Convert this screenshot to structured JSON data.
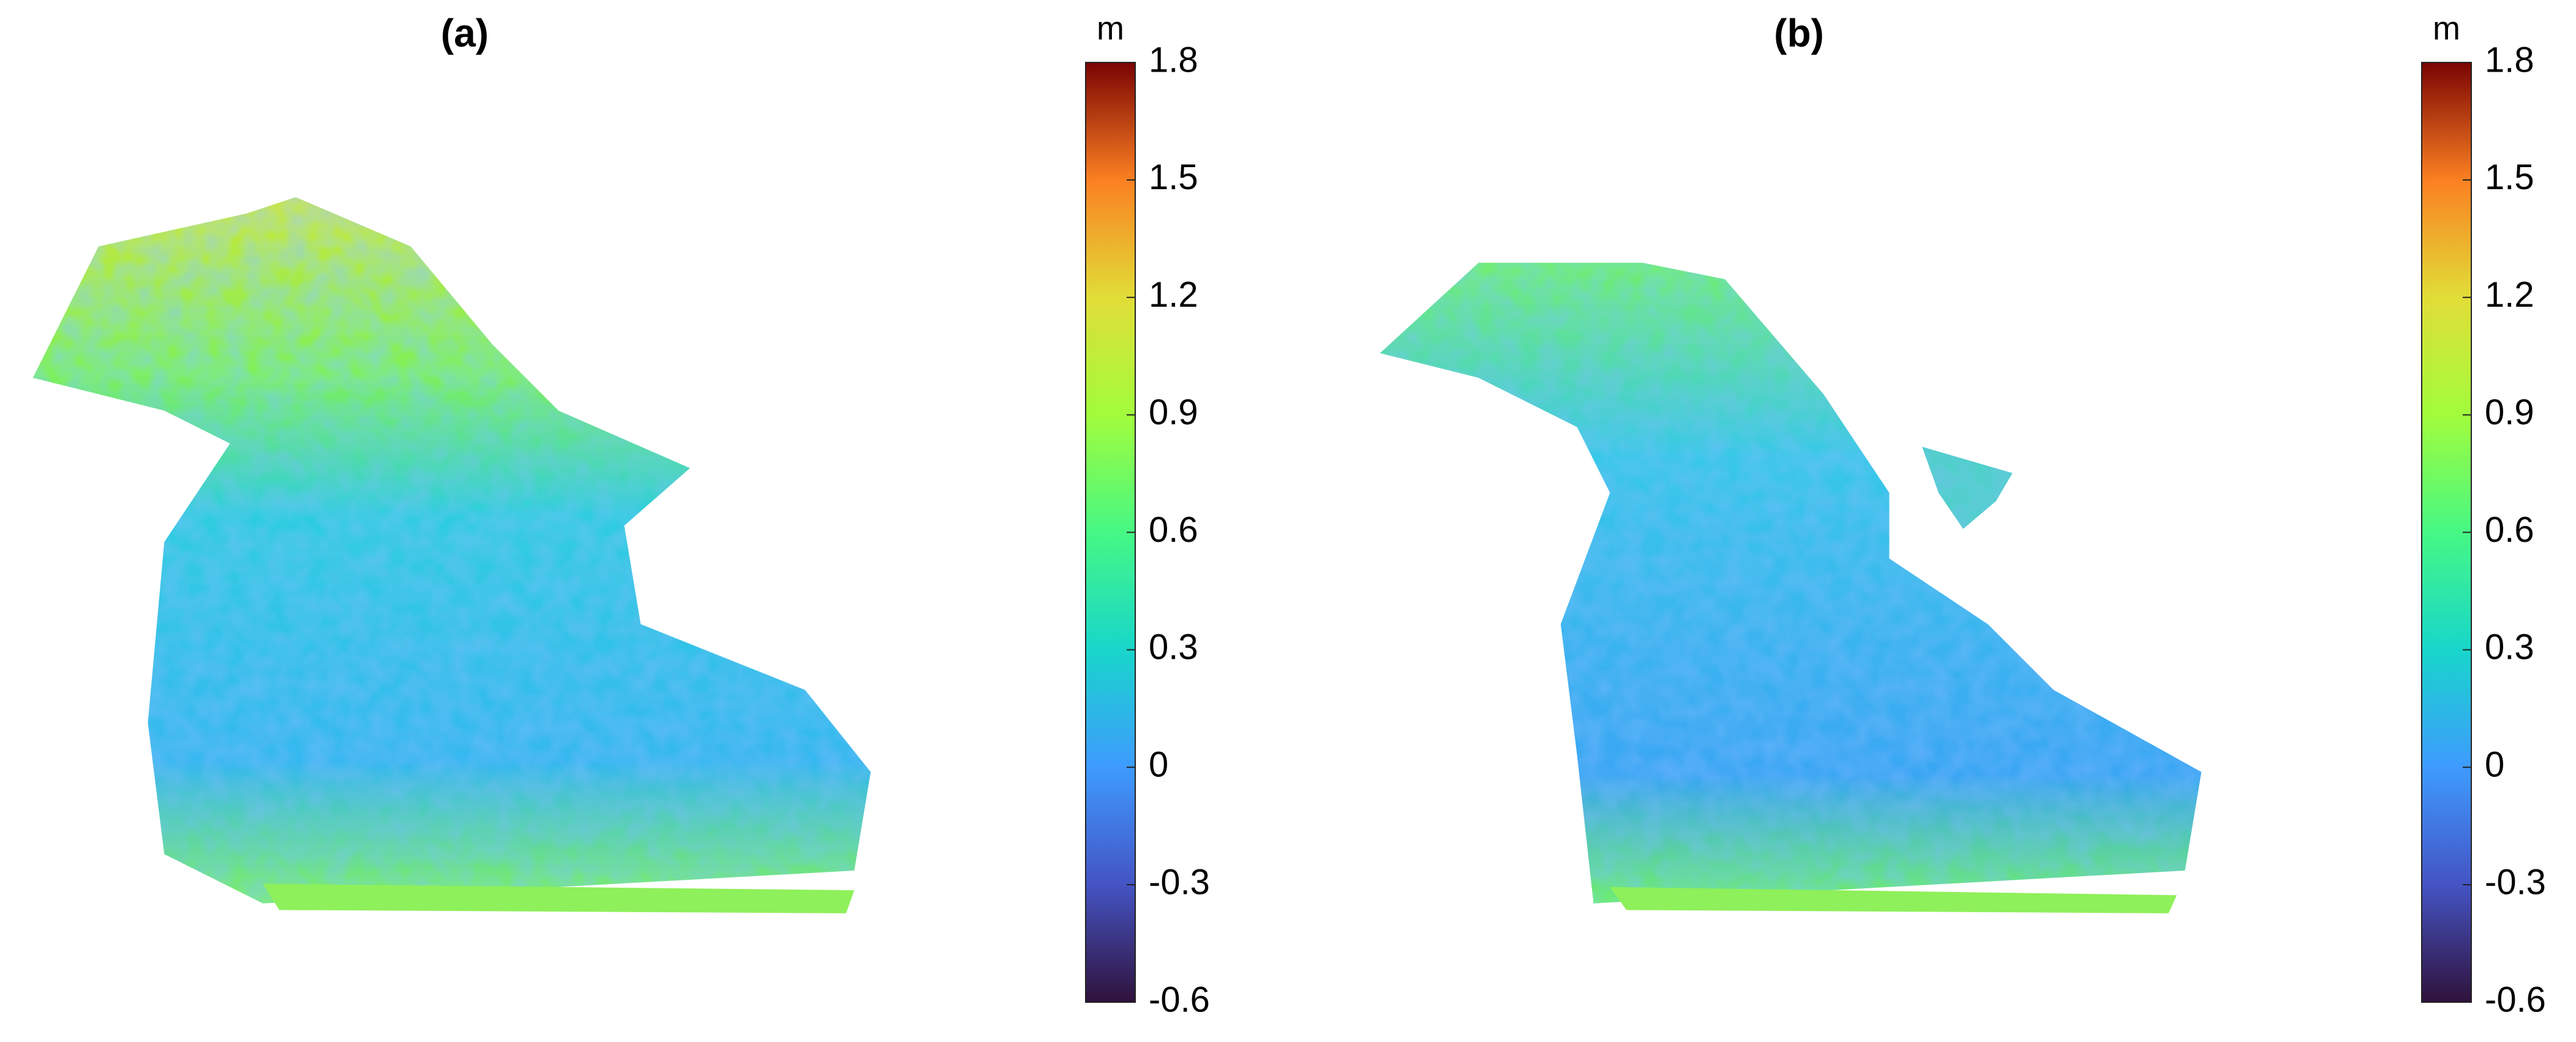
{
  "chart_data": [
    {
      "type": "colormap",
      "title": "(a)",
      "colorbar_label": "m",
      "colormap": "turbo",
      "clim": [
        -0.6,
        1.8
      ],
      "cticks": [
        -0.6,
        -0.3,
        0,
        0.3,
        0.6,
        0.9,
        1.2,
        1.5,
        1.8
      ]
    },
    {
      "type": "colormap",
      "title": "(b)",
      "colorbar_label": "m",
      "colormap": "turbo",
      "clim": [
        -0.6,
        1.8
      ],
      "cticks": [
        -0.6,
        -0.3,
        0,
        0.3,
        0.6,
        0.9,
        1.2,
        1.5,
        1.8
      ]
    }
  ]
}
